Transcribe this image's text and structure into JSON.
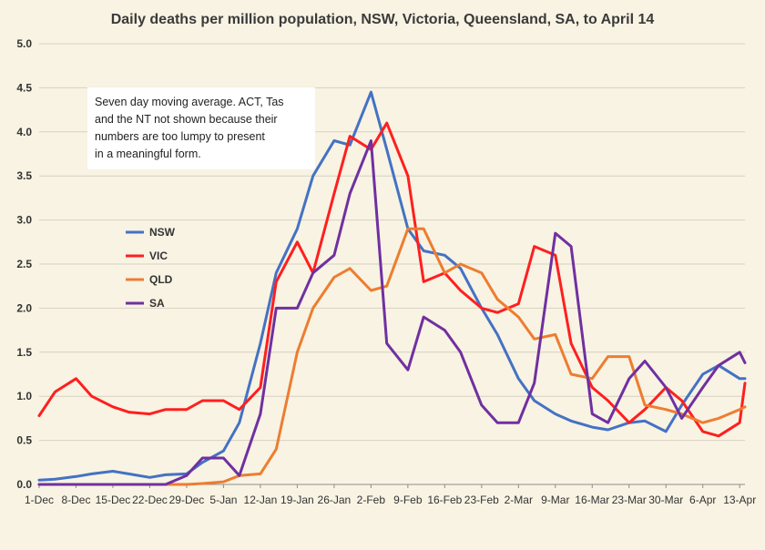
{
  "chart_data": {
    "type": "line",
    "title": "Daily deaths per million population, NSW, Victoria, Queensland, SA, to April 14",
    "xlabel": "",
    "ylabel": "",
    "ylim": [
      0,
      5
    ],
    "yticks": [
      "0.0",
      "0.5",
      "1.0",
      "1.5",
      "2.0",
      "2.5",
      "3.0",
      "3.5",
      "4.0",
      "4.5",
      "5.0"
    ],
    "x_tick_labels": [
      "1-Dec",
      "8-Dec",
      "15-Dec",
      "22-Dec",
      "29-Dec",
      "5-Jan",
      "12-Jan",
      "19-Jan",
      "26-Jan",
      "2-Feb",
      "9-Feb",
      "16-Feb",
      "23-Feb",
      "2-Mar",
      "9-Mar",
      "16-Mar",
      "23-Mar",
      "30-Mar",
      "6-Apr",
      "13-Apr"
    ],
    "x_range": [
      "1-Dec",
      "14-Apr"
    ],
    "grid": "horizontal",
    "legend_position": "center-left",
    "annotation": [
      "Seven day moving average. ACT, Tas",
      "and the NT not shown because their",
      "numbers are too lumpy to present",
      "in a meaningful form."
    ],
    "x": [
      "1-Dec",
      "4-Dec",
      "8-Dec",
      "11-Dec",
      "15-Dec",
      "18-Dec",
      "22-Dec",
      "25-Dec",
      "29-Dec",
      "1-Jan",
      "5-Jan",
      "8-Jan",
      "12-Jan",
      "15-Jan",
      "19-Jan",
      "22-Jan",
      "26-Jan",
      "29-Jan",
      "2-Feb",
      "5-Feb",
      "9-Feb",
      "12-Feb",
      "16-Feb",
      "19-Feb",
      "23-Feb",
      "26-Feb",
      "2-Mar",
      "5-Mar",
      "9-Mar",
      "12-Mar",
      "16-Mar",
      "19-Mar",
      "23-Mar",
      "26-Mar",
      "30-Mar",
      "2-Apr",
      "6-Apr",
      "9-Apr",
      "13-Apr",
      "14-Apr"
    ],
    "series": [
      {
        "name": "NSW",
        "color": "#4472C4",
        "values": [
          0.05,
          0.06,
          0.09,
          0.12,
          0.15,
          0.12,
          0.08,
          0.11,
          0.12,
          0.25,
          0.38,
          0.7,
          1.6,
          2.4,
          2.9,
          3.5,
          3.9,
          3.85,
          4.45,
          3.8,
          2.9,
          2.65,
          2.6,
          2.45,
          2.0,
          1.7,
          1.2,
          0.95,
          0.8,
          0.72,
          0.65,
          0.62,
          0.7,
          0.72,
          0.6,
          0.9,
          1.25,
          1.35,
          1.2,
          1.2
        ]
      },
      {
        "name": "VIC",
        "color": "#FF1F1F",
        "values": [
          0.78,
          1.05,
          1.2,
          1.0,
          0.88,
          0.82,
          0.8,
          0.85,
          0.85,
          0.95,
          0.95,
          0.85,
          1.1,
          2.3,
          2.75,
          2.4,
          3.3,
          3.95,
          3.8,
          4.1,
          3.5,
          2.3,
          2.4,
          2.2,
          2.0,
          1.95,
          2.05,
          2.7,
          2.6,
          1.6,
          1.1,
          0.95,
          0.7,
          0.85,
          1.1,
          0.95,
          0.6,
          0.55,
          0.7,
          1.15
        ]
      },
      {
        "name": "QLD",
        "color": "#ED7D31",
        "values": [
          0.0,
          0.0,
          0.0,
          0.0,
          0.0,
          0.0,
          0.0,
          0.0,
          0.0,
          0.01,
          0.03,
          0.1,
          0.12,
          0.4,
          1.5,
          2.0,
          2.35,
          2.45,
          2.2,
          2.25,
          2.9,
          2.9,
          2.4,
          2.5,
          2.4,
          2.1,
          1.9,
          1.65,
          1.7,
          1.25,
          1.2,
          1.45,
          1.45,
          0.9,
          0.85,
          0.8,
          0.7,
          0.75,
          0.85,
          0.88
        ]
      },
      {
        "name": "SA",
        "color": "#7030A0",
        "values": [
          0.0,
          0.0,
          0.0,
          0.0,
          0.0,
          0.0,
          0.0,
          0.0,
          0.1,
          0.3,
          0.3,
          0.1,
          0.8,
          2.0,
          2.0,
          2.4,
          2.6,
          3.3,
          3.9,
          1.6,
          1.3,
          1.9,
          1.75,
          1.5,
          0.9,
          0.7,
          0.7,
          1.15,
          2.85,
          2.7,
          0.8,
          0.7,
          1.2,
          1.4,
          1.1,
          0.75,
          1.1,
          1.35,
          1.5,
          1.38
        ]
      }
    ]
  }
}
